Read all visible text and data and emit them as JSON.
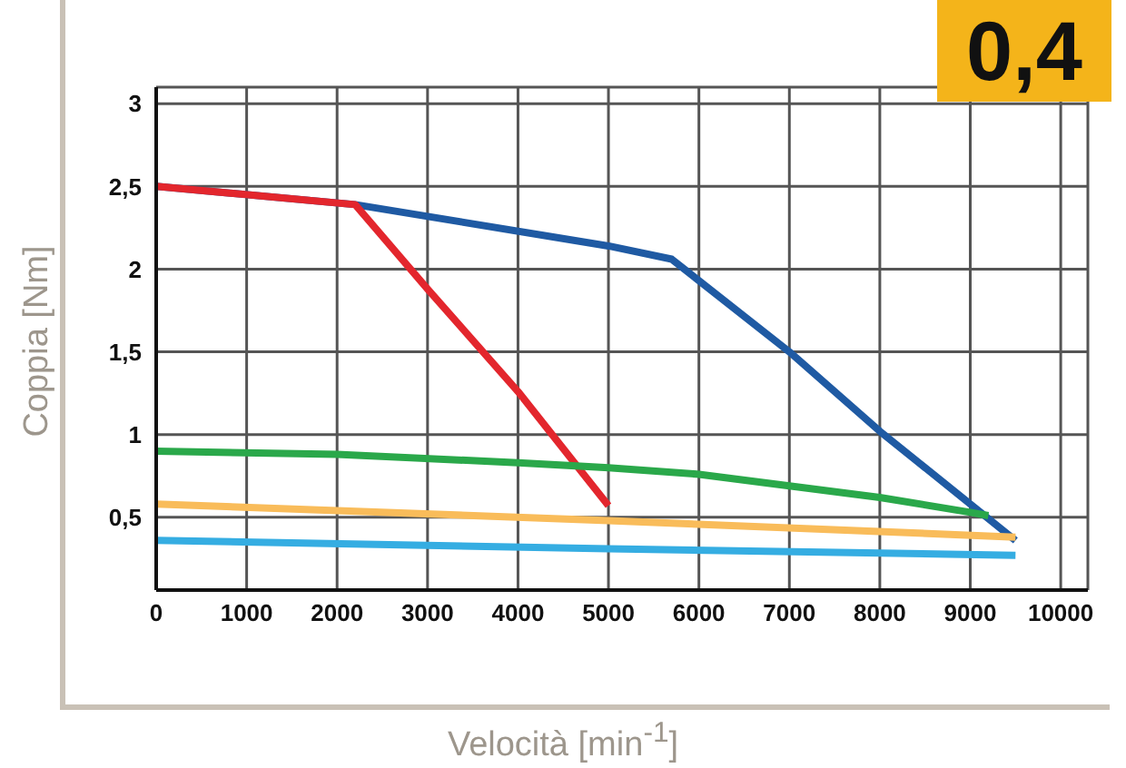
{
  "chart_data": {
    "type": "line",
    "xlabel": "Velocità [min$^{-1}$]",
    "ylabel": "Coppia [Nm]",
    "annotations": [
      "0,4"
    ],
    "xlim": [
      0,
      10300
    ],
    "xticks": [
      0,
      1000,
      2000,
      3000,
      4000,
      5000,
      6000,
      7000,
      8000,
      9000,
      10000
    ],
    "ylim": [
      0.06,
      3.1
    ],
    "yticks": [
      {
        "value": 0.5,
        "label": "0,5"
      },
      1,
      {
        "value": 1.5,
        "label": "1,5"
      },
      2,
      {
        "value": 2.5,
        "label": "2,5"
      },
      3
    ],
    "grid": true,
    "marker": "none",
    "line_style": "solid",
    "series": [
      {
        "color": "#1f5aa3",
        "x": [
          0,
          2200,
          5000,
          5700,
          7000,
          8000,
          9500
        ],
        "values": [
          2.5,
          2.39,
          2.14,
          2.06,
          1.5,
          1.02,
          0.36
        ]
      },
      {
        "color": "#e3262d",
        "x": [
          0,
          2200,
          3000,
          4000,
          5000
        ],
        "values": [
          2.5,
          2.39,
          1.88,
          1.26,
          0.57
        ]
      },
      {
        "color": "#2aa84a",
        "x": [
          0,
          2000,
          4000,
          5000,
          6000,
          7000,
          8000,
          9000,
          9200
        ],
        "values": [
          0.9,
          0.88,
          0.83,
          0.8,
          0.76,
          0.69,
          0.62,
          0.53,
          0.51
        ]
      },
      {
        "color": "#f9bc5a",
        "x": [
          0,
          5000,
          9500
        ],
        "values": [
          0.58,
          0.48,
          0.38
        ]
      },
      {
        "color": "#35ade2",
        "x": [
          0,
          5000,
          9500
        ],
        "values": [
          0.36,
          0.31,
          0.27
        ]
      }
    ]
  }
}
